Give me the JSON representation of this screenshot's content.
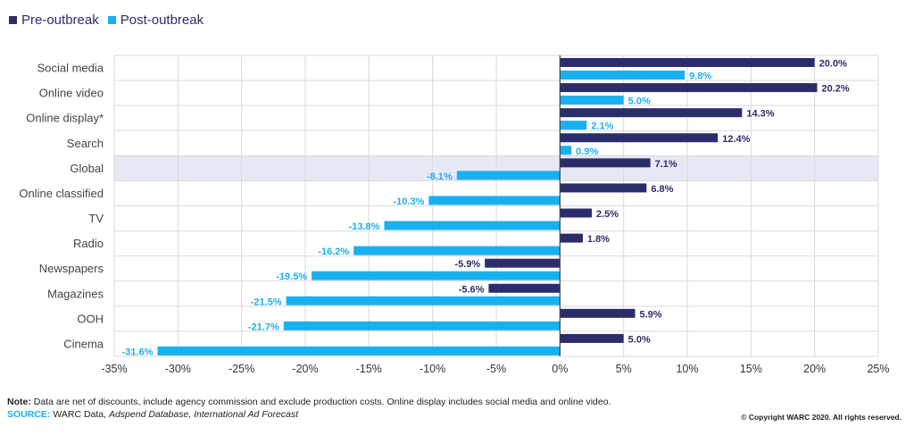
{
  "legend": {
    "pre_label": "Pre-outbreak",
    "post_label": "Post-outbreak"
  },
  "colors": {
    "pre": "#2b2d6a",
    "post": "#19b0ef",
    "highlight": "#e6e9f5",
    "grid": "#d9d9d9"
  },
  "chart_data": {
    "type": "bar",
    "orientation": "horizontal",
    "categories": [
      "Social media",
      "Online video",
      "Online display*",
      "Search",
      "Global",
      "Online classified",
      "TV",
      "Radio",
      "Newspapers",
      "Magazines",
      "OOH",
      "Cinema"
    ],
    "series": [
      {
        "name": "Pre-outbreak",
        "values": [
          20.0,
          20.2,
          14.3,
          12.4,
          7.1,
          6.8,
          2.5,
          1.8,
          -5.9,
          -5.6,
          5.9,
          5.0
        ]
      },
      {
        "name": "Post-outbreak",
        "values": [
          9.8,
          5.0,
          2.1,
          0.9,
          -8.1,
          -10.3,
          -13.8,
          -16.2,
          -19.5,
          -21.5,
          -21.7,
          -31.6
        ]
      }
    ],
    "data_labels": [
      [
        "20.0%",
        "20.2%",
        "14.3%",
        "12.4%",
        "7.1%",
        "6.8%",
        "2.5%",
        "1.8%",
        "-5.9%",
        "-5.6%",
        "5.9%",
        "5.0%"
      ],
      [
        "9.8%",
        "5.0%",
        "2.1%",
        "0.9%",
        "-8.1%",
        "-10.3%",
        "-13.8%",
        "-16.2%",
        "-19.5%",
        "-21.5%",
        "-21.7%",
        "-31.6%"
      ]
    ],
    "highlight_category": "Global",
    "xlim": [
      -35,
      25
    ],
    "xticks": [
      -35,
      -30,
      -25,
      -20,
      -15,
      -10,
      -5,
      0,
      5,
      10,
      15,
      20,
      25
    ],
    "xtick_labels": [
      "-35%",
      "-30%",
      "-25%",
      "-20%",
      "-15%",
      "-10%",
      "-5%",
      "0%",
      "5%",
      "10%",
      "15%",
      "20%",
      "25%"
    ],
    "grid": true,
    "legend_position": "top-left"
  },
  "footer": {
    "note_label": "Note:",
    "note_text": " Data are net of discounts, include agency commission and exclude production costs. Online display includes social media and online video.",
    "source_label": "SOURCE:",
    "source_plain": " WARC Data, ",
    "source_italic": "Adspend Database, International Ad Forecast",
    "copyright": "© Copyright WARC 2020. All rights reserved."
  }
}
